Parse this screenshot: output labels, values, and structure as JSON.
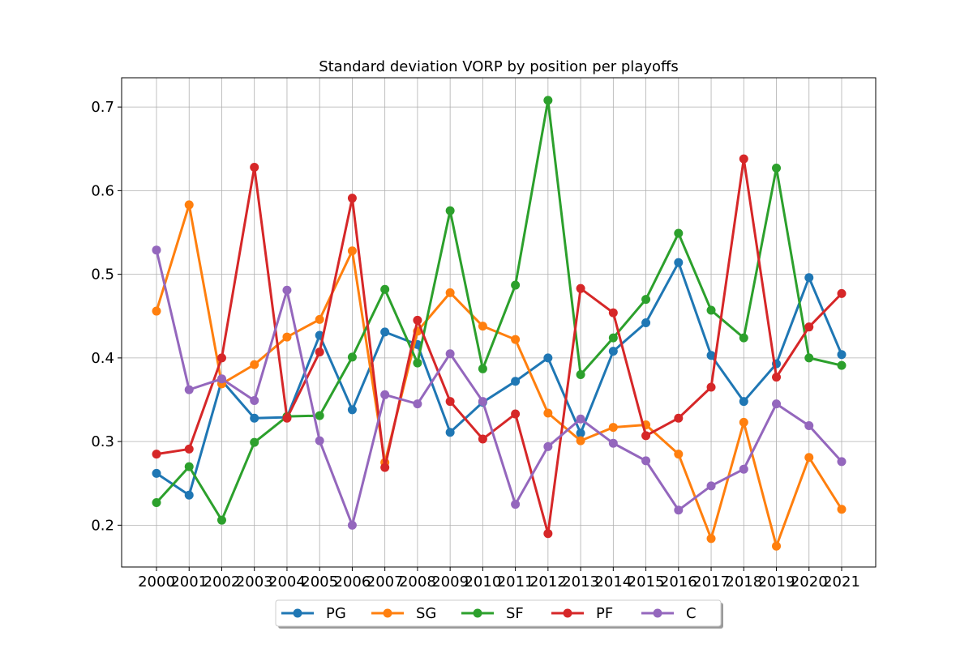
{
  "chart_data": {
    "type": "line",
    "title": "Standard deviation VORP by position per playoffs",
    "xlabel": "",
    "ylabel": "",
    "categories": [
      "2000",
      "2001",
      "2002",
      "2003",
      "2004",
      "2005",
      "2006",
      "2007",
      "2008",
      "2009",
      "2010",
      "2011",
      "2012",
      "2013",
      "2014",
      "2015",
      "2016",
      "2017",
      "2018",
      "2019",
      "2020",
      "2021"
    ],
    "ylim": [
      0.15,
      0.735
    ],
    "yticks": [
      0.2,
      0.3,
      0.4,
      0.5,
      0.6,
      0.7
    ],
    "grid": true,
    "legend_position": "bottom-center",
    "series": [
      {
        "name": "PG",
        "color": "#1f77b4",
        "values": [
          0.262,
          0.236,
          0.373,
          0.328,
          0.329,
          0.427,
          0.338,
          0.431,
          0.416,
          0.311,
          0.347,
          0.372,
          0.4,
          0.31,
          0.408,
          0.442,
          0.514,
          0.403,
          0.348,
          0.393,
          0.496,
          0.404
        ]
      },
      {
        "name": "SG",
        "color": "#ff7f0e",
        "values": [
          0.456,
          0.583,
          0.369,
          0.392,
          0.425,
          0.446,
          0.528,
          0.275,
          0.432,
          0.478,
          0.438,
          0.422,
          0.334,
          0.301,
          0.317,
          0.32,
          0.285,
          0.184,
          0.323,
          0.175,
          0.281,
          0.219
        ]
      },
      {
        "name": "SF",
        "color": "#2ca02c",
        "values": [
          0.227,
          0.27,
          0.206,
          0.299,
          0.33,
          0.331,
          0.401,
          0.482,
          0.394,
          0.576,
          0.387,
          0.487,
          0.708,
          0.38,
          0.424,
          0.47,
          0.549,
          0.457,
          0.424,
          0.627,
          0.4,
          0.391
        ]
      },
      {
        "name": "PF",
        "color": "#d62728",
        "values": [
          0.285,
          0.291,
          0.4,
          0.628,
          0.328,
          0.407,
          0.591,
          0.269,
          0.445,
          0.348,
          0.303,
          0.333,
          0.19,
          0.483,
          0.454,
          0.307,
          0.328,
          0.365,
          0.638,
          0.377,
          0.437,
          0.477
        ]
      },
      {
        "name": "C",
        "color": "#9467bd",
        "values": [
          0.529,
          0.362,
          0.375,
          0.349,
          0.481,
          0.301,
          0.2,
          0.356,
          0.345,
          0.405,
          0.348,
          0.225,
          0.294,
          0.327,
          0.298,
          0.277,
          0.218,
          0.247,
          0.267,
          0.345,
          0.319,
          0.276
        ]
      }
    ]
  }
}
